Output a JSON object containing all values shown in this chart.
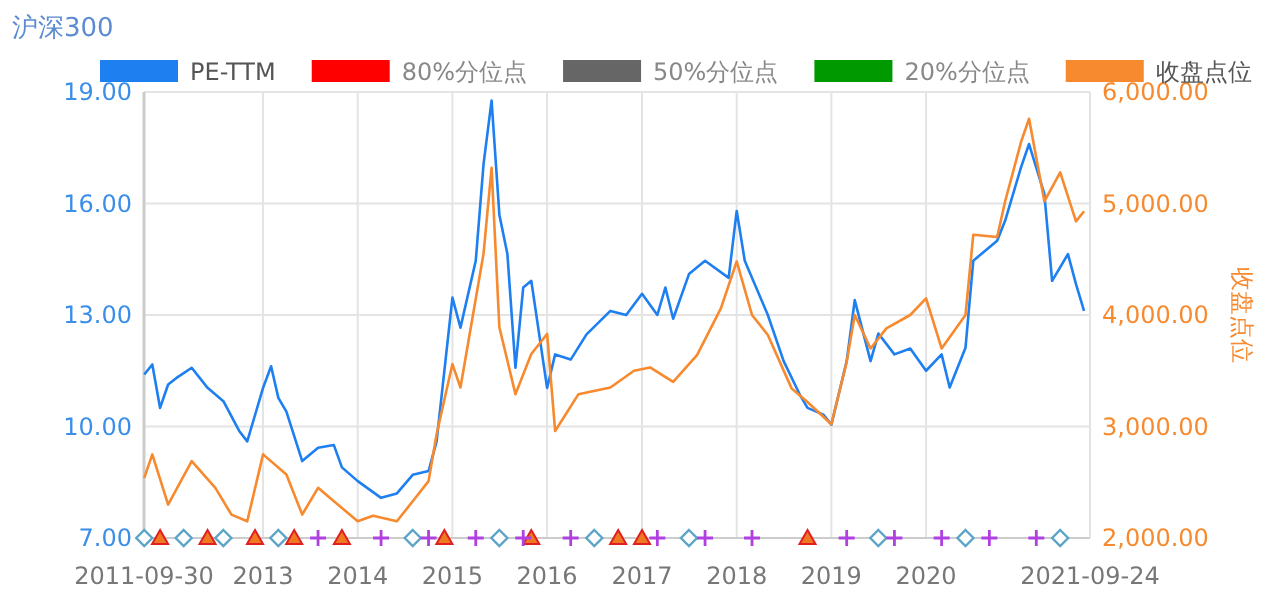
{
  "chart_data": {
    "type": "line",
    "title": "沪深300",
    "y2label": "收盘点位",
    "xlim": [
      "2011-09-30",
      "2021-09-24"
    ],
    "xticks": [
      "2011-09-30",
      "2013",
      "2014",
      "2015",
      "2016",
      "2017",
      "2018",
      "2019",
      "2020",
      "2021-09-24"
    ],
    "ylim": [
      7,
      19
    ],
    "yticks": [
      {
        "value": 7,
        "label": "7.00"
      },
      {
        "value": 10,
        "label": "10.00"
      },
      {
        "value": 13,
        "label": "13.00"
      },
      {
        "value": 16,
        "label": "16.00"
      },
      {
        "value": 19,
        "label": "19.00"
      }
    ],
    "y2lim": [
      2000,
      6000
    ],
    "y2ticks": [
      {
        "value": 2000,
        "label": "2,000.00"
      },
      {
        "value": 3000,
        "label": "3,000.00"
      },
      {
        "value": 4000,
        "label": "4,000.00"
      },
      {
        "value": 5000,
        "label": "5,000.00"
      },
      {
        "value": 6000,
        "label": "6,000.00"
      }
    ],
    "grid": true,
    "legend": "top",
    "series": [
      {
        "name": "PE-TTM",
        "color": "#1e7ff0",
        "x": [
          "2011-10",
          "2011-11",
          "2011-12",
          "2012-01",
          "2012-02",
          "2012-04",
          "2012-06",
          "2012-08",
          "2012-10",
          "2012-11",
          "2013-01",
          "2013-02",
          "2013-03",
          "2013-04",
          "2013-06",
          "2013-08",
          "2013-10",
          "2013-11",
          "2014-01",
          "2014-04",
          "2014-06",
          "2014-08",
          "2014-10",
          "2014-11",
          "2015-01",
          "2015-02",
          "2015-04",
          "2015-05",
          "2015-06",
          "2015-07",
          "2015-08",
          "2015-09",
          "2015-10",
          "2015-11",
          "2016-01",
          "2016-02",
          "2016-04",
          "2016-06",
          "2016-09",
          "2016-11",
          "2017-01",
          "2017-03",
          "2017-04",
          "2017-05",
          "2017-07",
          "2017-09",
          "2017-12",
          "2018-01",
          "2018-02",
          "2018-05",
          "2018-07",
          "2018-09",
          "2018-10",
          "2018-12",
          "2019-01",
          "2019-03",
          "2019-04",
          "2019-06",
          "2019-07",
          "2019-09",
          "2019-11",
          "2020-01",
          "2020-03",
          "2020-04",
          "2020-06",
          "2020-07",
          "2020-10",
          "2020-11",
          "2021-01",
          "2021-02",
          "2021-04",
          "2021-05",
          "2021-07",
          "2021-08",
          "2021-09"
        ],
        "values": [
          11.4,
          11.67,
          10.5,
          11.13,
          11.3,
          11.58,
          11.04,
          10.68,
          9.88,
          9.6,
          11.04,
          11.62,
          10.77,
          10.4,
          9.07,
          9.43,
          9.5,
          8.9,
          8.53,
          8.08,
          8.2,
          8.7,
          8.8,
          9.6,
          13.47,
          12.66,
          14.46,
          17.06,
          18.77,
          15.7,
          14.64,
          11.58,
          13.74,
          13.92,
          11.04,
          11.94,
          11.8,
          12.48,
          13.11,
          13.0,
          13.57,
          13.0,
          13.74,
          12.9,
          14.1,
          14.46,
          14.0,
          15.8,
          14.46,
          13.0,
          11.76,
          10.86,
          10.5,
          10.32,
          10.05,
          11.76,
          13.4,
          11.76,
          12.5,
          11.94,
          12.1,
          11.5,
          11.94,
          11.05,
          12.12,
          14.46,
          15.0,
          15.54,
          16.97,
          17.6,
          16.26,
          13.92,
          14.64,
          13.83,
          13.11
        ]
      },
      {
        "name": "80%分位点",
        "color": "#ff0000"
      },
      {
        "name": "50%分位点",
        "color": "#666666"
      },
      {
        "name": "20%分位点",
        "color": "#009900"
      },
      {
        "name": "收盘点位",
        "color": "#f7892e",
        "axis": "y2",
        "x": [
          "2011-10",
          "2011-11",
          "2012-01",
          "2012-04",
          "2012-07",
          "2012-09",
          "2012-11",
          "2013-01",
          "2013-04",
          "2013-06",
          "2013-08",
          "2013-10",
          "2014-01",
          "2014-03",
          "2014-06",
          "2014-08",
          "2014-10",
          "2014-11",
          "2015-01",
          "2015-02",
          "2015-05",
          "2015-06",
          "2015-07",
          "2015-09",
          "2015-11",
          "2016-01",
          "2016-02",
          "2016-05",
          "2016-09",
          "2016-12",
          "2017-02",
          "2017-05",
          "2017-08",
          "2017-11",
          "2018-01",
          "2018-03",
          "2018-05",
          "2018-08",
          "2018-10",
          "2019-01",
          "2019-03",
          "2019-04",
          "2019-06",
          "2019-08",
          "2019-11",
          "2020-01",
          "2020-03",
          "2020-06",
          "2020-07",
          "2020-10",
          "2020-11",
          "2021-01",
          "2021-02",
          "2021-04",
          "2021-06",
          "2021-08",
          "2021-09"
        ],
        "values": [
          2540,
          2750,
          2300,
          2690,
          2450,
          2210,
          2150,
          2750,
          2570,
          2210,
          2450,
          2330,
          2150,
          2200,
          2150,
          2330,
          2510,
          2930,
          3560,
          3350,
          4550,
          5320,
          3890,
          3290,
          3650,
          3830,
          2960,
          3290,
          3350,
          3500,
          3530,
          3400,
          3640,
          4060,
          4480,
          4000,
          3820,
          3340,
          3220,
          3020,
          3580,
          4000,
          3700,
          3880,
          4000,
          4150,
          3700,
          4000,
          4720,
          4700,
          5020,
          5550,
          5760,
          5020,
          5280,
          4840,
          4930
        ]
      },
      {
        "type": "scatter",
        "marker": "diamond",
        "color": "#5ba4c8",
        "x": [
          "2011-10",
          "2012-03",
          "2012-08",
          "2013-03",
          "2014-08",
          "2015-07",
          "2016-07",
          "2017-07",
          "2019-07",
          "2020-06",
          "2021-06"
        ],
        "values": [
          7,
          7,
          7,
          7,
          7,
          7,
          7,
          7,
          7,
          7,
          7
        ]
      },
      {
        "type": "scatter",
        "marker": "triangle",
        "color": "#f07820",
        "x": [
          "2011-12",
          "2012-06",
          "2012-12",
          "2013-05",
          "2013-11",
          "2014-12",
          "2015-11",
          "2016-10",
          "2017-01",
          "2018-10"
        ],
        "values": [
          7,
          7,
          7,
          7,
          7,
          7,
          7,
          7,
          7,
          7
        ]
      },
      {
        "type": "scatter",
        "marker": "cross",
        "color": "#b040e0",
        "x": [
          "2013-08",
          "2014-04",
          "2014-10",
          "2015-04",
          "2015-10",
          "2016-04",
          "2017-03",
          "2017-09",
          "2018-03",
          "2019-03",
          "2019-09",
          "2020-03",
          "2020-09",
          "2021-03"
        ],
        "values": [
          7,
          7,
          7,
          7,
          7,
          7,
          7,
          7,
          7,
          7,
          7,
          7,
          7,
          7
        ]
      }
    ]
  }
}
